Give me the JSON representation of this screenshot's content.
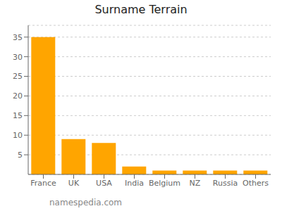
{
  "chart_data": {
    "type": "bar",
    "title": "Surname Terrain",
    "categories": [
      "France",
      "UK",
      "USA",
      "India",
      "Belgium",
      "NZ",
      "Russia",
      "Others"
    ],
    "values": [
      35,
      9,
      8,
      2,
      1,
      1,
      1,
      1
    ],
    "color": "#FFA500",
    "ylim": [
      0,
      38
    ],
    "yticks": [
      5,
      10,
      15,
      20,
      25,
      30,
      35
    ],
    "grid": true,
    "annotation": "namespedia.com"
  }
}
